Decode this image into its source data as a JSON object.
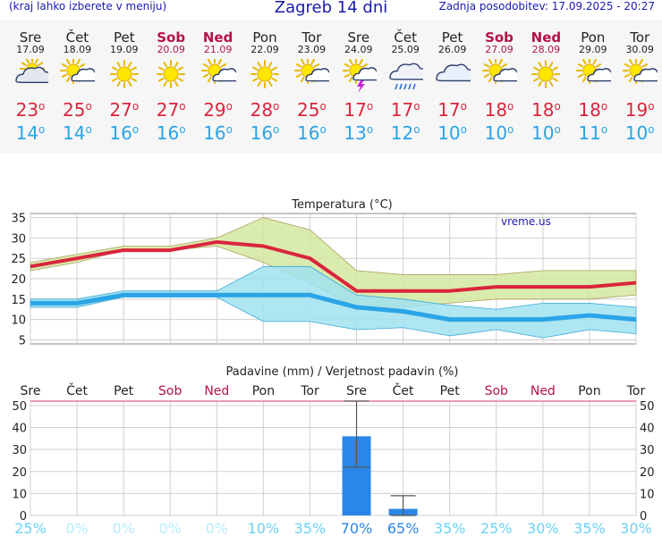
{
  "header": {
    "menu_hint": "(kraj lahko izberete v meniju)",
    "title": "Zagreb 14 dni",
    "updated": "Zadnja posodobitev: 17.09.2025 - 20:27"
  },
  "days": [
    {
      "name": "Sre",
      "date": "17.09",
      "icon": "cloudy-sun-icon",
      "weekend": false,
      "tmax": "23",
      "tmin": "14"
    },
    {
      "name": "Čet",
      "date": "18.09",
      "icon": "sun-cloud-icon",
      "weekend": false,
      "tmax": "25",
      "tmin": "14"
    },
    {
      "name": "Pet",
      "date": "19.09",
      "icon": "sun-icon",
      "weekend": false,
      "tmax": "27",
      "tmin": "16"
    },
    {
      "name": "Sob",
      "date": "20.09",
      "icon": "sun-icon",
      "weekend": true,
      "tmax": "27",
      "tmin": "16"
    },
    {
      "name": "Ned",
      "date": "21.09",
      "icon": "sun-cloud-icon",
      "weekend": true,
      "tmax": "29",
      "tmin": "16"
    },
    {
      "name": "Pon",
      "date": "22.09",
      "icon": "sun-icon",
      "weekend": false,
      "tmax": "28",
      "tmin": "16"
    },
    {
      "name": "Tor",
      "date": "23.09",
      "icon": "sun-cloud-icon",
      "weekend": false,
      "tmax": "25",
      "tmin": "16"
    },
    {
      "name": "Sre",
      "date": "24.09",
      "icon": "sun-storm-icon",
      "weekend": false,
      "tmax": "17",
      "tmin": "13"
    },
    {
      "name": "Čet",
      "date": "25.09",
      "icon": "rain-cloud-icon",
      "weekend": false,
      "tmax": "17",
      "tmin": "12"
    },
    {
      "name": "Pet",
      "date": "26.09",
      "icon": "cloud-icon",
      "weekend": false,
      "tmax": "17",
      "tmin": "10"
    },
    {
      "name": "Sob",
      "date": "27.09",
      "icon": "sun-cloud-icon",
      "weekend": true,
      "tmax": "18",
      "tmin": "10"
    },
    {
      "name": "Ned",
      "date": "28.09",
      "icon": "sun-icon",
      "weekend": true,
      "tmax": "18",
      "tmin": "10"
    },
    {
      "name": "Pon",
      "date": "29.09",
      "icon": "sun-cloud-icon",
      "weekend": false,
      "tmax": "18",
      "tmin": "11"
    },
    {
      "name": "Tor",
      "date": "30.09",
      "icon": "sun-cloud-icon",
      "weekend": false,
      "tmax": "19",
      "tmin": "10"
    }
  ],
  "degree_symbol": "o",
  "colors": {
    "max": "#d9263d",
    "min": "#2aa4e6",
    "maxband": "#d4e8a0",
    "minband": "#a0e2f0",
    "overlap": "#84d282",
    "bar": "#2a86e8",
    "prob": "#6ad2f5",
    "weekend": "#b3124b"
  },
  "chart_data": [
    {
      "type": "line",
      "title": "Temperatura (°C)",
      "watermark": "vreme.us",
      "categories": [
        "Sre",
        "Čet",
        "Pet",
        "Sob",
        "Ned",
        "Pon",
        "Tor",
        "Sre",
        "Čet",
        "Pet",
        "Sob",
        "Ned",
        "Pon",
        "Tor"
      ],
      "ylim": [
        4,
        36
      ],
      "yticks": [
        5,
        10,
        15,
        20,
        25,
        30,
        35
      ],
      "grid": true,
      "series": [
        {
          "name": "max",
          "values": [
            23,
            25,
            27,
            27,
            29,
            28,
            25,
            17,
            17,
            17,
            18,
            18,
            18,
            19
          ],
          "band_low": [
            22,
            24,
            27,
            27,
            28,
            24,
            19,
            13,
            13,
            14,
            15,
            15,
            15,
            16
          ],
          "band_high": [
            24,
            26,
            28,
            28,
            30,
            35,
            32,
            22,
            21,
            21,
            21,
            22,
            22,
            22
          ]
        },
        {
          "name": "min",
          "values": [
            14,
            14,
            16,
            16,
            16,
            16,
            16,
            13,
            12,
            10,
            10,
            10,
            11,
            10
          ],
          "band_low": [
            13,
            13,
            15.5,
            15.5,
            15.5,
            9.5,
            9.5,
            7.5,
            8,
            6,
            7.5,
            5.5,
            7.5,
            6.5
          ],
          "band_high": [
            15,
            15,
            17,
            17,
            17,
            23,
            23,
            16,
            15,
            13.5,
            12.5,
            14,
            14,
            13
          ]
        }
      ]
    },
    {
      "type": "bar",
      "title": "Padavine (mm) / Verjetnost padavin (%)",
      "categories": [
        "Sre",
        "Čet",
        "Pet",
        "Sob",
        "Ned",
        "Pon",
        "Tor",
        "Sre",
        "Čet",
        "Pet",
        "Sob",
        "Ned",
        "Pon",
        "Tor"
      ],
      "ylim": [
        0,
        52
      ],
      "yticks": [
        0,
        10,
        20,
        30,
        40,
        50
      ],
      "grid": true,
      "values": [
        0,
        0,
        0,
        0,
        0,
        0,
        0,
        36,
        3,
        0,
        0,
        0,
        0,
        0
      ],
      "err_low": [
        null,
        null,
        null,
        null,
        null,
        null,
        null,
        22,
        0,
        null,
        null,
        null,
        null,
        null
      ],
      "err_high": [
        null,
        null,
        null,
        null,
        null,
        null,
        null,
        52,
        9,
        null,
        null,
        null,
        null,
        null
      ],
      "probability": [
        "25%",
        "0%",
        "0%",
        "0%",
        "0%",
        "10%",
        "35%",
        "70%",
        "65%",
        "35%",
        "25%",
        "30%",
        "35%",
        "30%"
      ],
      "probability_values": [
        25,
        0,
        0,
        0,
        0,
        10,
        35,
        70,
        65,
        35,
        25,
        30,
        35,
        30
      ]
    }
  ]
}
